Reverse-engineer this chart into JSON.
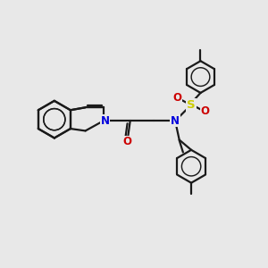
{
  "bg_color": "#e8e8e8",
  "bond_color": "#1a1a1a",
  "N_color": "#0000dd",
  "O_color": "#cc0000",
  "S_color": "#cccc00",
  "line_width": 1.6,
  "fig_width": 3.0,
  "fig_height": 3.0,
  "dpi": 100,
  "font_size": 8.5,
  "xlim": [
    0,
    10
  ],
  "ylim": [
    0,
    10
  ]
}
